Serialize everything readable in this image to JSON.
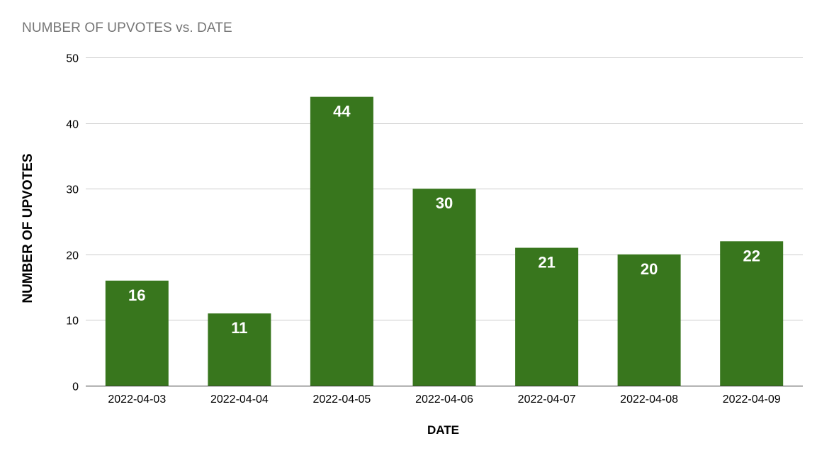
{
  "chart_data": {
    "type": "bar",
    "title": "NUMBER OF UPVOTES vs. DATE",
    "xlabel": "DATE",
    "ylabel": "NUMBER OF UPVOTES",
    "categories": [
      "2022-04-03",
      "2022-04-04",
      "2022-04-05",
      "2022-04-06",
      "2022-04-07",
      "2022-04-08",
      "2022-04-09"
    ],
    "values": [
      16,
      11,
      44,
      30,
      21,
      20,
      22
    ],
    "ylim": [
      0,
      50
    ],
    "yticks": [
      0,
      10,
      20,
      30,
      40,
      50
    ],
    "grid": true,
    "legend": "none",
    "bar_color": "#38761d",
    "label_color": "#ffffff"
  }
}
